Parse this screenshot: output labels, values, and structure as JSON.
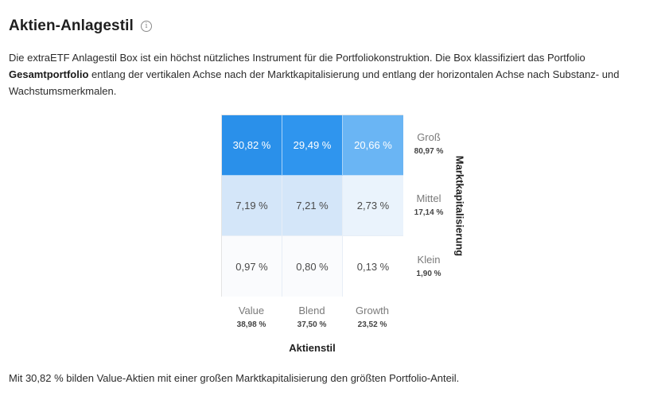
{
  "header": {
    "title": "Aktien-Anlagestil",
    "info_icon": "info-circle-icon"
  },
  "description": {
    "part1": "Die extraETF Anlagestil Box ist ein höchst nützliches Instrument für die Portfoliokonstruktion. Die Box klassifiziert das Portfolio ",
    "bold": "Gesamtportfolio",
    "part2": " entlang der vertikalen Achse nach der Marktkapitalisierung und entlang der horizontalen Achse nach Substanz- und Wachstumsmerkmalen."
  },
  "chart_data": {
    "type": "heatmap",
    "title": "Aktien-Anlagestil",
    "xlabel": "Aktienstil",
    "ylabel": "Marktkapitalisierung",
    "columns": [
      {
        "name": "Value",
        "total": "38,98 %"
      },
      {
        "name": "Blend",
        "total": "37,50 %"
      },
      {
        "name": "Growth",
        "total": "23,52 %"
      }
    ],
    "rows": [
      {
        "name": "Groß",
        "total": "80,97 %"
      },
      {
        "name": "Mittel",
        "total": "17,14 %"
      },
      {
        "name": "Klein",
        "total": "1,90 %"
      }
    ],
    "values": [
      [
        30.82,
        29.49,
        20.66
      ],
      [
        7.19,
        7.21,
        2.73
      ],
      [
        0.97,
        0.8,
        0.13
      ]
    ],
    "labels": [
      [
        "30,82 %",
        "29,49 %",
        "20,66 %"
      ],
      [
        "7,19 %",
        "7,21 %",
        "2,73 %"
      ],
      [
        "0,97 %",
        "0,80 %",
        "0,13 %"
      ]
    ],
    "fills": [
      [
        "#2a90ea",
        "#2f95ee",
        "#6ab5f4"
      ],
      [
        "#d4e6f9",
        "#d4e6f9",
        "#eaf3fc"
      ],
      [
        "#fafbfd",
        "#fafbfd",
        "#ffffff"
      ]
    ],
    "text_colors": [
      [
        "#ffffff",
        "#ffffff",
        "#ffffff"
      ],
      [
        "#4a4a4a",
        "#4a4a4a",
        "#4a4a4a"
      ],
      [
        "#4a4a4a",
        "#4a4a4a",
        "#4a4a4a"
      ]
    ]
  },
  "summary": "Mit 30,82 % bilden Value-Aktien mit einer großen Marktkapitalisierung den größten Portfolio-Anteil."
}
